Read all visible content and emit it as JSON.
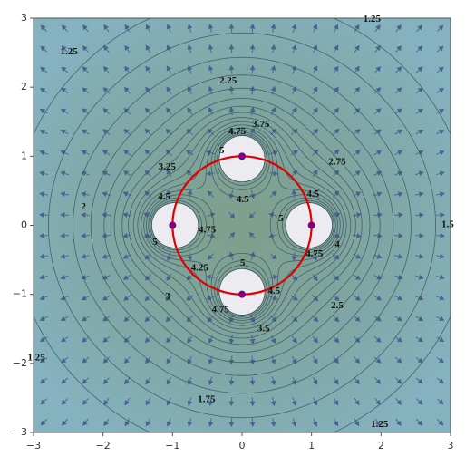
{
  "chart_data": {
    "type": "contour",
    "xlim": [
      -3,
      3
    ],
    "ylim": [
      -3,
      3
    ],
    "xticks": [
      {
        "value": -3,
        "label": "−3"
      },
      {
        "value": -2,
        "label": "−2"
      },
      {
        "value": -1,
        "label": "−1"
      },
      0,
      1,
      2,
      3
    ],
    "yticks": [
      {
        "value": -3,
        "label": "−3"
      },
      {
        "value": -2,
        "label": "−2"
      },
      {
        "value": -1,
        "label": "−1"
      },
      0,
      1,
      2,
      3
    ],
    "levels": [
      1.25,
      1.5,
      1.75,
      2,
      2.25,
      2.5,
      2.75,
      3,
      3.25,
      3.5,
      3.75,
      4,
      4.25,
      4.5,
      4.75,
      5
    ],
    "charges": {
      "x": [
        0,
        1,
        0,
        -1
      ],
      "y": [
        1,
        0,
        -1,
        0
      ],
      "color": "#800080"
    },
    "circle": {
      "center": [
        0,
        0
      ],
      "radius": 1,
      "color": "#e00000"
    },
    "contour_labels": [
      {
        "value": 1.25,
        "x": 1.87,
        "y": 2.98
      },
      {
        "value": 1.25,
        "x": -2.49,
        "y": 2.51
      },
      {
        "value": 2.25,
        "x": -0.2,
        "y": 2.09
      },
      {
        "value": 3.75,
        "x": 0.27,
        "y": 1.46
      },
      {
        "value": 4.75,
        "x": -0.07,
        "y": 1.35
      },
      {
        "value": 5,
        "x": -0.29,
        "y": 1.08
      },
      {
        "value": 3.25,
        "x": -1.08,
        "y": 0.84
      },
      {
        "value": 2.75,
        "x": 1.37,
        "y": 0.91
      },
      {
        "value": 4.5,
        "x": -1.12,
        "y": 0.41
      },
      {
        "value": 4.5,
        "x": 0.01,
        "y": 0.37
      },
      {
        "value": 4.5,
        "x": 1.02,
        "y": 0.45
      },
      {
        "value": 2,
        "x": -2.28,
        "y": 0.26
      },
      {
        "value": 5,
        "x": 0.56,
        "y": 0.09
      },
      {
        "value": 4.75,
        "x": -0.5,
        "y": -0.07
      },
      {
        "value": 1.5,
        "x": 2.96,
        "y": 0.01
      },
      {
        "value": 5,
        "x": -1.25,
        "y": -0.25
      },
      {
        "value": 4,
        "x": 1.37,
        "y": -0.28
      },
      {
        "value": 4.75,
        "x": 1.04,
        "y": -0.42
      },
      {
        "value": 5,
        "x": 0.01,
        "y": -0.55
      },
      {
        "value": 4.25,
        "x": -0.61,
        "y": -0.62
      },
      {
        "value": 4.5,
        "x": 0.46,
        "y": -0.96
      },
      {
        "value": 3,
        "x": -1.07,
        "y": -1.04
      },
      {
        "value": 2.5,
        "x": 1.37,
        "y": -1.17
      },
      {
        "value": 4.75,
        "x": -0.31,
        "y": -1.23
      },
      {
        "value": 3.5,
        "x": 0.31,
        "y": -1.5
      },
      {
        "value": 1.25,
        "x": -2.96,
        "y": -1.92
      },
      {
        "value": 1.75,
        "x": -0.51,
        "y": -2.53
      },
      {
        "value": 1.25,
        "x": 1.98,
        "y": -2.89
      }
    ]
  }
}
